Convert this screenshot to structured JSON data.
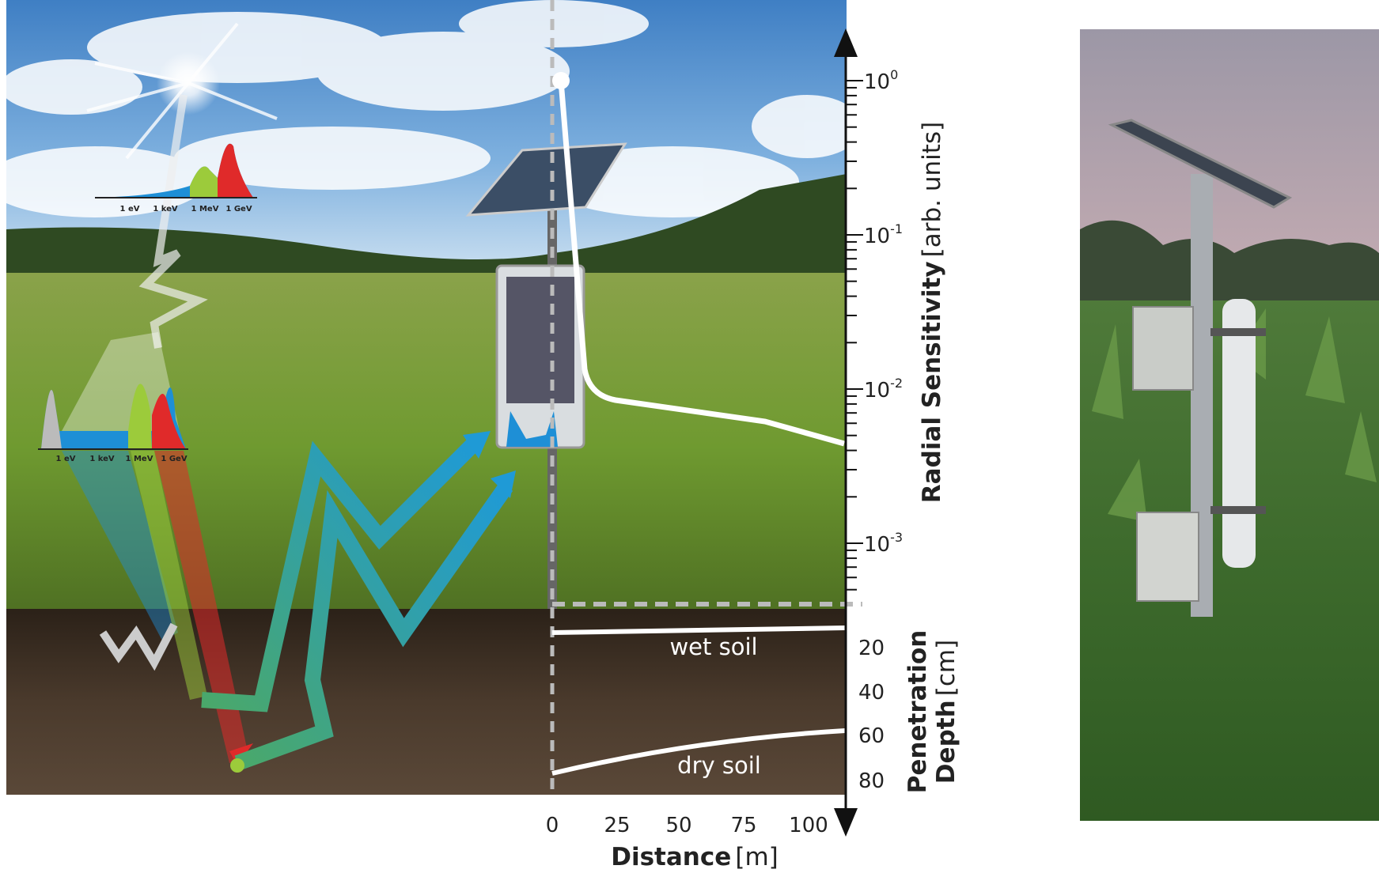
{
  "spectrum_top": {
    "labels": [
      "1 eV",
      "1 keV",
      "1 MeV",
      "1 GeV"
    ]
  },
  "spectrum_soil": {
    "labels": [
      "1 eV",
      "1 keV",
      "1 MeV",
      "1 GeV"
    ]
  },
  "sensitivity_axis": {
    "title": "Radial Sensitivity",
    "unit": "[arb. units]",
    "ticks": [
      {
        "base": "10",
        "exponent": "0"
      },
      {
        "base": "10",
        "exponent": "-1"
      },
      {
        "base": "10",
        "exponent": "-2"
      },
      {
        "base": "10",
        "exponent": "-3"
      }
    ]
  },
  "depth_axis": {
    "title_line1": "Penetration",
    "title_line2": "Depth",
    "unit": "[cm]",
    "ticks": [
      "20",
      "40",
      "60",
      "80"
    ]
  },
  "distance_axis": {
    "title": "Distance",
    "unit": "[m]",
    "ticks": [
      "0",
      "25",
      "50",
      "75",
      "100"
    ]
  },
  "soil_labels": {
    "wet": "wet soil",
    "dry": "dry soil"
  }
}
